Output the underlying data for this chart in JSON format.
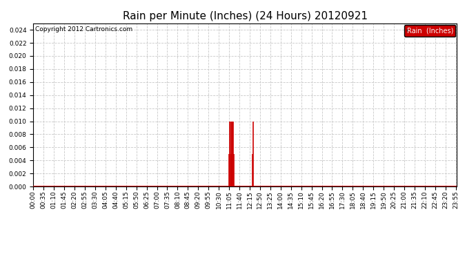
{
  "title": "Rain per Minute (Inches) (24 Hours) 20120921",
  "copyright": "Copyright 2012 Cartronics.com",
  "legend_label": "Rain  (Inches)",
  "legend_bg": "#cc0000",
  "legend_text_color": "#ffffff",
  "ylim": [
    0.0,
    0.025
  ],
  "yticks": [
    0.0,
    0.002,
    0.004,
    0.006,
    0.008,
    0.01,
    0.012,
    0.014,
    0.016,
    0.018,
    0.02,
    0.022,
    0.024
  ],
  "bg_color": "#ffffff",
  "plot_bg_color": "#ffffff",
  "grid_color": "#c8c8c8",
  "line_color": "#cc0000",
  "baseline_color": "#cc0000",
  "title_fontsize": 11,
  "tick_fontsize": 6.5,
  "total_minutes": 1440,
  "rain_events": [
    {
      "minute": 665,
      "value": 0.005
    },
    {
      "minute": 667,
      "value": 0.01
    },
    {
      "minute": 669,
      "value": 0.01
    },
    {
      "minute": 671,
      "value": 0.005
    },
    {
      "minute": 673,
      "value": 0.01
    },
    {
      "minute": 675,
      "value": 0.01
    },
    {
      "minute": 677,
      "value": 0.01
    },
    {
      "minute": 679,
      "value": 0.01
    },
    {
      "minute": 681,
      "value": 0.005
    },
    {
      "minute": 745,
      "value": 0.005
    },
    {
      "minute": 747,
      "value": 0.01
    }
  ],
  "xtick_labels_minutes": [
    0,
    35,
    70,
    105,
    140,
    175,
    210,
    245,
    280,
    315,
    350,
    385,
    420,
    455,
    490,
    525,
    560,
    595,
    630,
    665,
    700,
    735,
    770,
    805,
    840,
    875,
    910,
    945,
    980,
    1015,
    1050,
    1085,
    1120,
    1155,
    1190,
    1225,
    1260,
    1295,
    1330,
    1365,
    1400,
    1435
  ]
}
